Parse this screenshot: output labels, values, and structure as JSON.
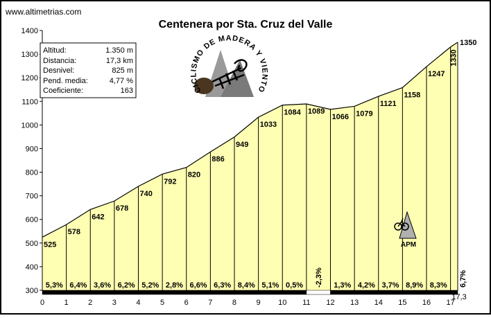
{
  "site": "www.altimetrias.com",
  "chart_data": {
    "type": "area",
    "title": "Centenera por Sta. Cruz del Valle",
    "x": [
      0,
      1,
      2,
      3,
      4,
      5,
      6,
      7,
      8,
      9,
      10,
      11,
      12,
      13,
      14,
      15,
      16,
      17,
      17.3
    ],
    "altitudes": [
      525,
      578,
      642,
      678,
      740,
      792,
      820,
      886,
      949,
      1033,
      1084,
      1089,
      1066,
      1079,
      1121,
      1158,
      1247,
      1330,
      1350
    ],
    "point_labels": [
      "525",
      "578",
      "642",
      "678",
      "740",
      "792",
      "820",
      "886",
      "949",
      "1033",
      "1084",
      "1089",
      "1066",
      "1079",
      "1121",
      "1158",
      "1247",
      "1330",
      "1350"
    ],
    "gradients": [
      "5,3%",
      "6,4%",
      "3,6%",
      "6,2%",
      "5,2%",
      "2,8%",
      "6,6%",
      "6,3%",
      "8,4%",
      "5,1%",
      "0,5%",
      "-2,3%",
      "1,3%",
      "4,2%",
      "3,7%",
      "8,9%",
      "8,3%",
      "6,7%"
    ],
    "x_ticks": [
      "0",
      "1",
      "2",
      "3",
      "4",
      "5",
      "6",
      "7",
      "8",
      "9",
      "10",
      "11",
      "12",
      "13",
      "14",
      "15",
      "16",
      "17"
    ],
    "x_end_label": "17,3",
    "y_ticks": [
      "300",
      "400",
      "500",
      "600",
      "700",
      "800",
      "900",
      "1000",
      "1100",
      "1200",
      "1300",
      "1400"
    ],
    "ylim": [
      300,
      1400
    ],
    "xlim": [
      0,
      17.3
    ],
    "fill_color": "#ffffb3",
    "grid": false
  },
  "stats": [
    {
      "label": "Altitud:",
      "value": "1.350 m"
    },
    {
      "label": "Distancia:",
      "value": "17,3 km"
    },
    {
      "label": "Desnivel:",
      "value": "825 m"
    },
    {
      "label": "Pend. media:",
      "value": "4,77 %"
    },
    {
      "label": "Coeficiente:",
      "value": "163"
    }
  ],
  "logo": {
    "text": "CICLISMO DE MADERA Y VIENTO"
  },
  "marker": {
    "label": "APM",
    "km": 15.3
  }
}
